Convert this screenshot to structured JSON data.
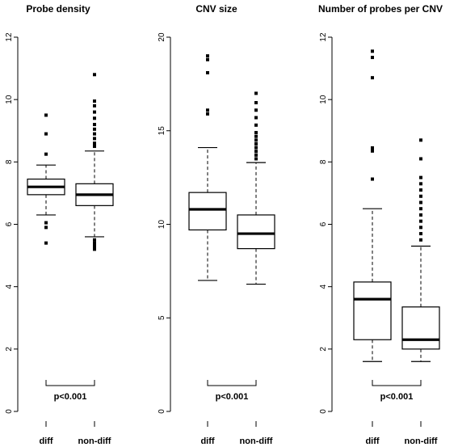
{
  "chart_data": [
    {
      "type": "boxplot",
      "title": "Probe density",
      "ylim": [
        0,
        12
      ],
      "yticks": [
        0,
        2,
        4,
        6,
        8,
        10,
        12
      ],
      "categories": [
        "diff",
        "non-diff"
      ],
      "boxes": [
        {
          "category": "diff",
          "whisker_low": 6.3,
          "q1": 6.95,
          "median": 7.2,
          "q3": 7.45,
          "whisker_high": 7.9,
          "outliers": [
            5.4,
            5.9,
            6.05,
            8.25,
            8.9,
            9.5
          ]
        },
        {
          "category": "non-diff",
          "whisker_low": 5.6,
          "q1": 6.6,
          "median": 6.95,
          "q3": 7.3,
          "whisker_high": 8.35,
          "outliers": [
            5.2,
            5.3,
            5.4,
            5.5,
            8.5,
            8.6,
            8.75,
            8.9,
            9.05,
            9.2,
            9.4,
            9.6,
            9.8,
            9.95,
            10.8
          ]
        }
      ],
      "annotation": "p<0.001"
    },
    {
      "type": "boxplot",
      "title": "CNV size",
      "ylim": [
        0,
        20
      ],
      "yticks": [
        0,
        5,
        10,
        15,
        20
      ],
      "categories": [
        "diff",
        "non-diff"
      ],
      "boxes": [
        {
          "category": "diff",
          "whisker_low": 7.0,
          "q1": 9.7,
          "median": 10.8,
          "q3": 11.7,
          "whisker_high": 14.1,
          "outliers": [
            15.9,
            16.1,
            18.1,
            18.8,
            19.0
          ]
        },
        {
          "category": "non-diff",
          "whisker_low": 6.8,
          "q1": 8.7,
          "median": 9.5,
          "q3": 10.5,
          "whisker_high": 13.3,
          "outliers": [
            13.5,
            13.7,
            13.9,
            14.1,
            14.3,
            14.5,
            14.7,
            14.9,
            15.3,
            15.7,
            16.1,
            16.5,
            17.0
          ]
        }
      ],
      "annotation": "p<0.001"
    },
    {
      "type": "boxplot",
      "title": "Number of probes per CNV",
      "ylim": [
        0,
        12
      ],
      "yticks": [
        0,
        2,
        4,
        6,
        8,
        10,
        12
      ],
      "categories": [
        "diff",
        "non-diff"
      ],
      "boxes": [
        {
          "category": "diff",
          "whisker_low": 1.6,
          "q1": 2.3,
          "median": 3.6,
          "q3": 4.15,
          "whisker_high": 6.5,
          "outliers": [
            7.45,
            8.35,
            8.45,
            10.7,
            11.35,
            11.55
          ]
        },
        {
          "category": "non-diff",
          "whisker_low": 1.6,
          "q1": 2.0,
          "median": 2.3,
          "q3": 3.35,
          "whisker_high": 5.3,
          "outliers": [
            5.5,
            5.7,
            5.9,
            6.1,
            6.3,
            6.5,
            6.7,
            6.9,
            7.1,
            7.3,
            7.5,
            8.1,
            8.7
          ]
        }
      ],
      "annotation": "p<0.001"
    }
  ]
}
